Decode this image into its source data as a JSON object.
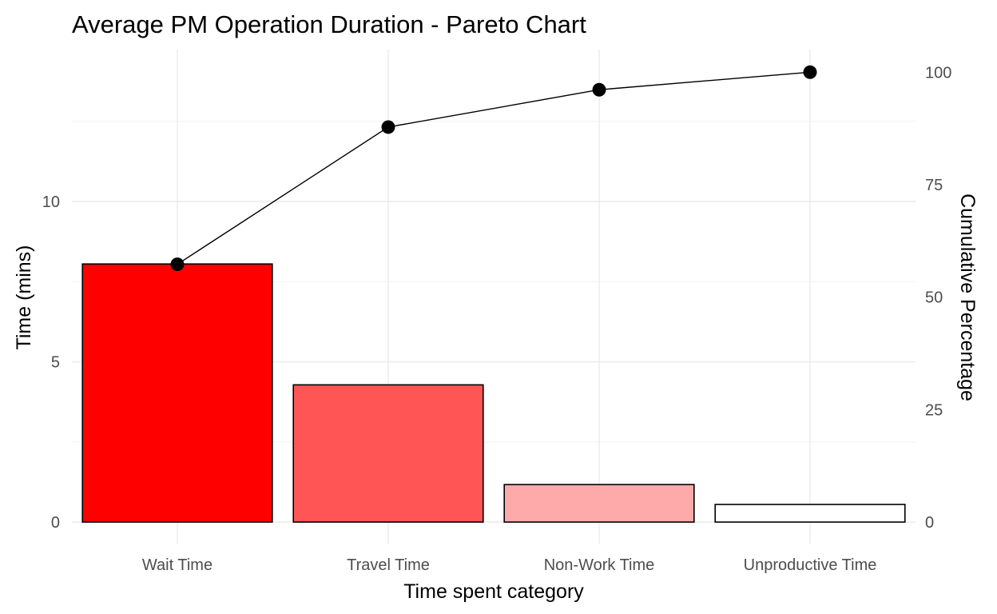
{
  "chart_data": {
    "type": "bar",
    "title": "Average PM Operation Duration - Pareto Chart",
    "xlabel": "Time spent category",
    "ylabel": "Time (mins)",
    "y2label": "Cumulative Percentage",
    "categories": [
      "Wait Time",
      "Travel Time",
      "Non-Work Time",
      "Unproductive Time"
    ],
    "values": [
      8.05,
      4.28,
      1.17,
      0.55
    ],
    "bar_colors": [
      "#FF0000",
      "#FF5555",
      "#FFAAAA",
      "#FFFFFF"
    ],
    "cumulative_percentage": [
      57.3,
      87.8,
      96.1,
      100
    ],
    "ylim": [
      0,
      14.3
    ],
    "y_ticks": [
      0,
      5,
      10
    ],
    "y2lim": [
      0,
      100
    ],
    "y2_ticks": [
      0,
      25,
      50,
      75,
      100
    ],
    "line_color": "#000000",
    "grid": true,
    "legend": "none"
  }
}
